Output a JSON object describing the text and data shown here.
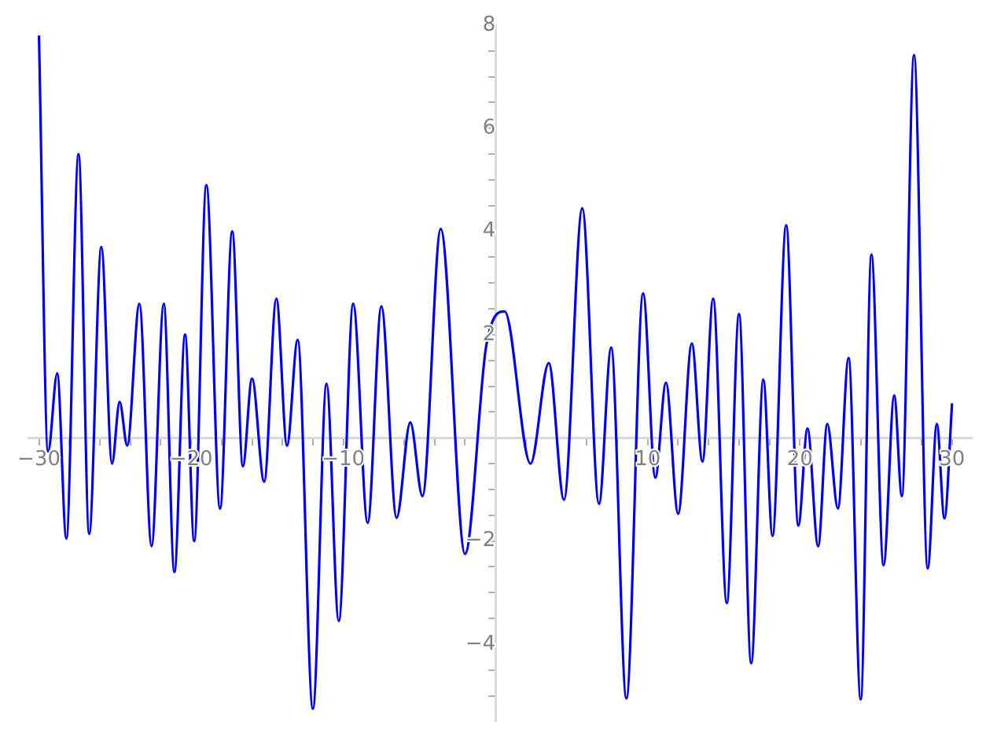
{
  "chart_data": {
    "type": "line",
    "color": "#0000ff",
    "marker": "none",
    "line_style": "solid",
    "grid": false,
    "legend": false,
    "x": [
      -30,
      -29.4,
      -28.8,
      -28.2,
      -27.4,
      -26.7,
      -25.9,
      -25.2,
      -24.7,
      -24.2,
      -23.4,
      -22.6,
      -21.8,
      -21.1,
      -20.4,
      -19.8,
      -19.0,
      -18.1,
      -17.3,
      -16.6,
      -16.0,
      -15.2,
      -14.4,
      -13.7,
      -13.0,
      -12.0,
      -11.1,
      -10.3,
      -9.35,
      -8.4,
      -7.5,
      -6.5,
      -5.6,
      -4.8,
      -3.6,
      -2.0,
      -0.6,
      0.6,
      2.3,
      3.5,
      4.5,
      5.7,
      6.8,
      7.6,
      8.6,
      9.7,
      10.5,
      11.2,
      12.0,
      12.9,
      13.6,
      14.3,
      15.2,
      16.0,
      16.8,
      17.6,
      18.2,
      19.1,
      19.9,
      20.5,
      21.2,
      21.8,
      22.5,
      23.2,
      24.0,
      24.7,
      25.5,
      26.2,
      26.7,
      27.5,
      28.4,
      29.0,
      29.5,
      30
    ],
    "values": [
      7.8,
      -0.27,
      1.25,
      -1.95,
      5.5,
      -1.86,
      3.7,
      -0.5,
      0.7,
      -0.15,
      2.6,
      -2.1,
      2.6,
      -2.6,
      2.0,
      -2.0,
      4.9,
      -1.37,
      4.0,
      -0.55,
      1.15,
      -0.85,
      2.7,
      -0.15,
      1.9,
      -5.25,
      1.05,
      -3.55,
      2.6,
      -1.65,
      2.55,
      -1.55,
      0.3,
      -1.13,
      4.05,
      -2.25,
      1.8,
      2.45,
      -0.5,
      1.45,
      -1.2,
      4.45,
      -1.28,
      1.75,
      -5.05,
      2.8,
      -0.77,
      1.07,
      -1.47,
      1.83,
      -0.46,
      2.7,
      -3.2,
      2.4,
      -4.37,
      1.13,
      -1.9,
      4.12,
      -1.7,
      0.18,
      -2.1,
      0.27,
      -1.37,
      1.55,
      -5.07,
      3.55,
      -2.47,
      0.82,
      -1.13,
      7.42,
      -2.53,
      0.27,
      -1.56,
      0.67
    ],
    "xlim": [
      -30.7,
      31.3
    ],
    "ylim": [
      -5.5,
      8
    ],
    "xticks": [
      {
        "value": -30,
        "label": "−30"
      },
      {
        "value": -28,
        "label": null
      },
      {
        "value": -26,
        "label": null
      },
      {
        "value": -24,
        "label": null
      },
      {
        "value": -22,
        "label": null
      },
      {
        "value": -20,
        "label": "−20"
      },
      {
        "value": -18,
        "label": null
      },
      {
        "value": -16,
        "label": null
      },
      {
        "value": -14,
        "label": null
      },
      {
        "value": -12,
        "label": null
      },
      {
        "value": -10,
        "label": "−10"
      },
      {
        "value": -8,
        "label": null
      },
      {
        "value": -6,
        "label": null
      },
      {
        "value": -4,
        "label": null
      },
      {
        "value": -2,
        "label": null
      },
      {
        "value": 0,
        "label": null
      },
      {
        "value": 2,
        "label": null
      },
      {
        "value": 4,
        "label": null
      },
      {
        "value": 6,
        "label": null
      },
      {
        "value": 8,
        "label": null
      },
      10,
      {
        "value": 12,
        "label": null
      },
      {
        "value": 14,
        "label": null
      },
      {
        "value": 16,
        "label": null
      },
      {
        "value": 18,
        "label": null
      },
      20,
      {
        "value": 22,
        "label": null
      },
      {
        "value": 24,
        "label": null
      },
      {
        "value": 26,
        "label": null
      },
      {
        "value": 28,
        "label": null
      },
      30
    ],
    "yticks": [
      {
        "value": -5,
        "label": null
      },
      {
        "value": -4.5,
        "label": null
      },
      {
        "value": -4,
        "label": "−4"
      },
      {
        "value": -3.5,
        "label": null
      },
      {
        "value": -3,
        "label": null
      },
      {
        "value": -2.5,
        "label": null
      },
      {
        "value": -2,
        "label": "−2"
      },
      {
        "value": -1.5,
        "label": null
      },
      {
        "value": -1,
        "label": null
      },
      {
        "value": -0.5,
        "label": null
      },
      {
        "value": 0,
        "label": null
      },
      {
        "value": 0.5,
        "label": null
      },
      {
        "value": 1,
        "label": null
      },
      {
        "value": 1.5,
        "label": null
      },
      2,
      {
        "value": 2.5,
        "label": null
      },
      {
        "value": 3,
        "label": null
      },
      {
        "value": 3.5,
        "label": null
      },
      4,
      {
        "value": 4.5,
        "label": null
      },
      {
        "value": 5,
        "label": null
      },
      {
        "value": 5.5,
        "label": null
      },
      6,
      {
        "value": 6.5,
        "label": null
      },
      {
        "value": 7,
        "label": null
      },
      {
        "value": 7.5,
        "label": null
      },
      8
    ]
  }
}
